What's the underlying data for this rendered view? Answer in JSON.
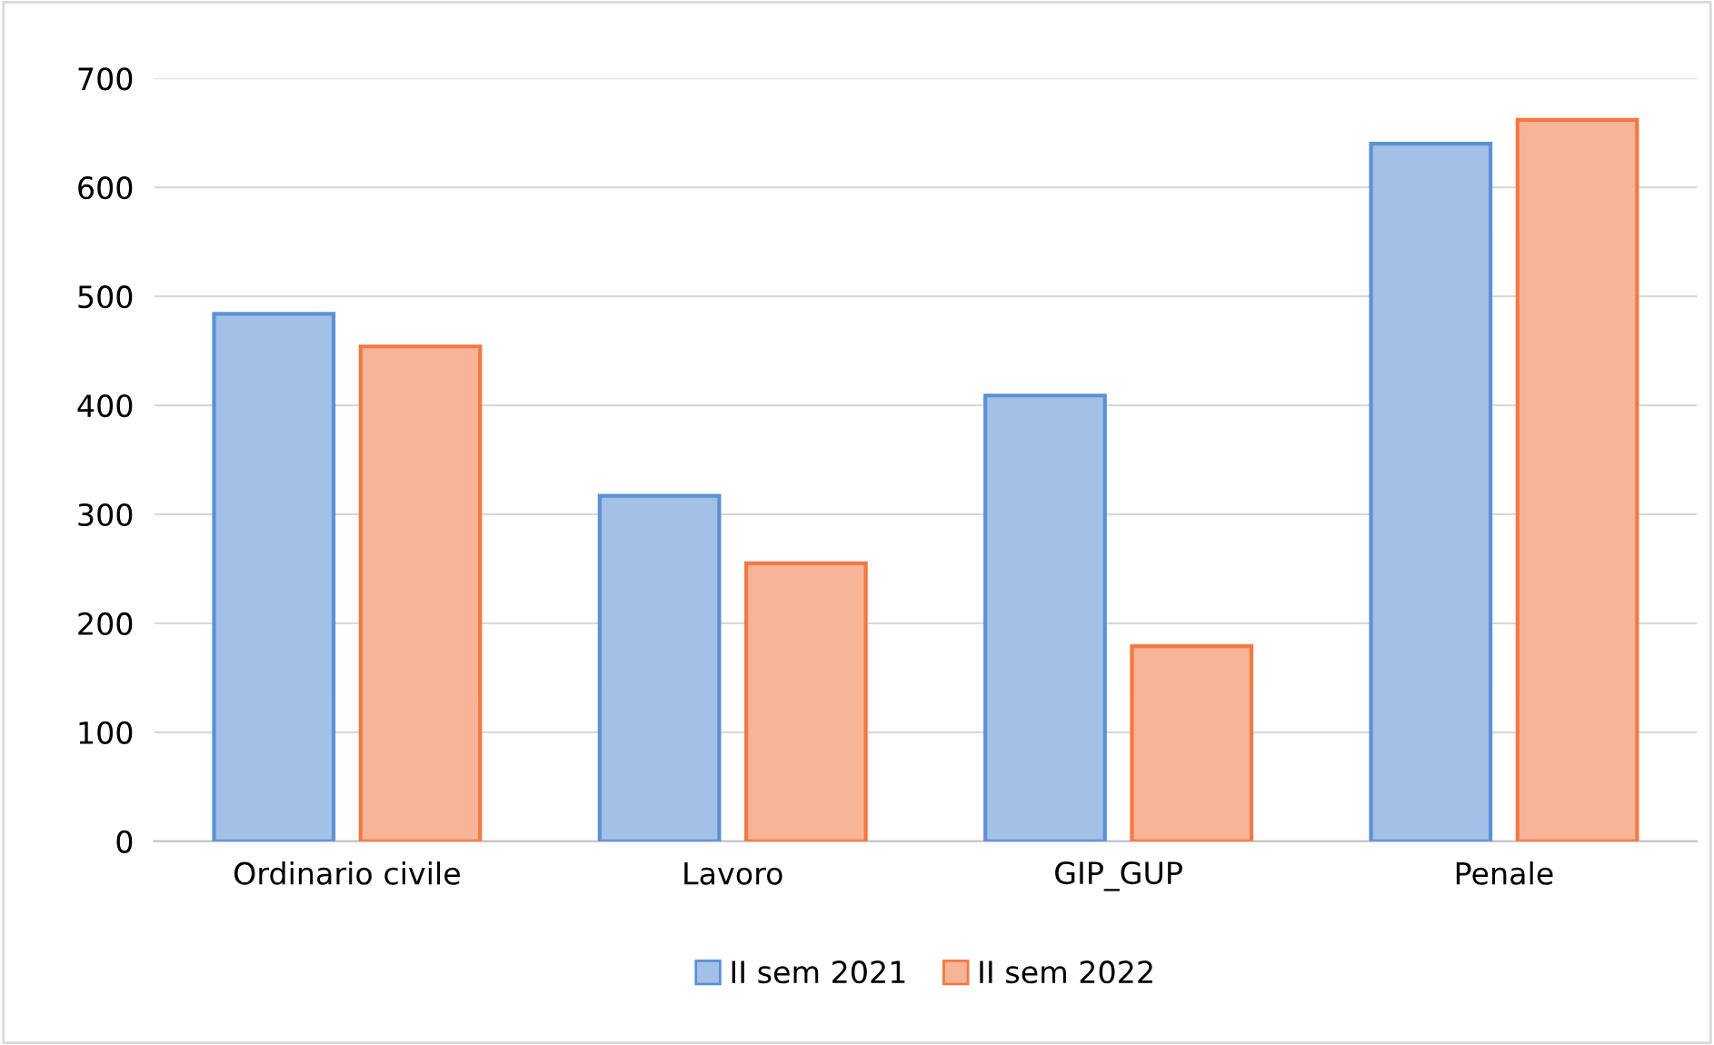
{
  "chart_data": {
    "type": "bar",
    "categories": [
      "Ordinario civile",
      "Lavoro",
      "GIP_GUP",
      "Penale"
    ],
    "series": [
      {
        "name": "II sem 2021",
        "color": "#a3c0e6",
        "values": [
          484,
          317,
          409,
          640
        ]
      },
      {
        "name": "II sem 2022",
        "color": "#f7b497",
        "values": [
          454,
          255,
          179,
          662
        ]
      }
    ],
    "ylim": [
      0,
      700
    ],
    "yticks": [
      0,
      100,
      200,
      300,
      400,
      500,
      600,
      700
    ],
    "grid": "y",
    "legend": "bottom"
  }
}
